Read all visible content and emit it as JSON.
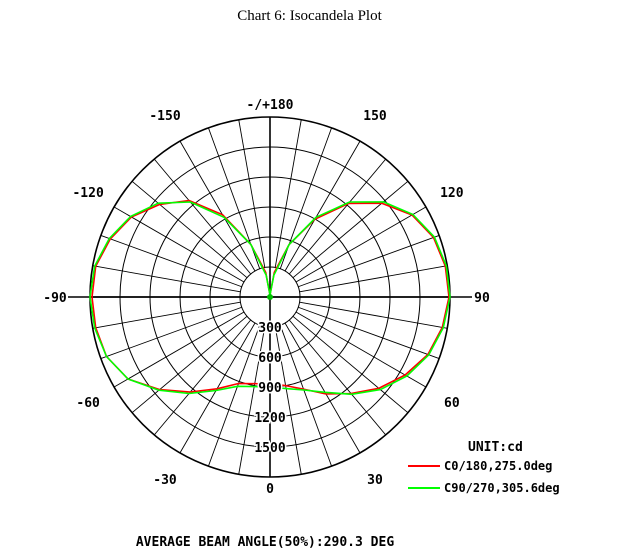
{
  "chart_data": {
    "type": "polar-line",
    "title": "Chart 6: Isocandela Plot",
    "unit_label": "UNIT:cd",
    "angle_labels": [
      {
        "deg": 180,
        "text": "-/+180"
      },
      {
        "deg": 150,
        "text": "150"
      },
      {
        "deg": 120,
        "text": "120"
      },
      {
        "deg": 90,
        "text": "90"
      },
      {
        "deg": 60,
        "text": "60"
      },
      {
        "deg": 30,
        "text": "30"
      },
      {
        "deg": 0,
        "text": "0"
      },
      {
        "deg": -30,
        "text": "-30"
      },
      {
        "deg": -60,
        "text": "-60"
      },
      {
        "deg": -90,
        "text": "-90"
      },
      {
        "deg": -120,
        "text": "-120"
      },
      {
        "deg": -150,
        "text": "-150"
      }
    ],
    "radial_labels": [
      "300",
      "600",
      "900",
      "1200",
      "1500"
    ],
    "radial_max": 1800,
    "radial_rings": [
      300,
      600,
      900,
      1200,
      1500,
      1800
    ],
    "angle_grid_step_deg": 10,
    "series": [
      {
        "name": "C0/180,275.0deg",
        "color": "#ff0000",
        "angles": [
          0,
          10,
          20,
          30,
          40,
          50,
          60,
          70,
          80,
          90,
          100,
          110,
          120,
          130,
          140,
          150,
          160,
          170,
          180,
          -170,
          -160,
          -150,
          -140,
          -130,
          -120,
          -110,
          -100,
          -90,
          -80,
          -70,
          -60,
          -50,
          -40,
          -30,
          -20,
          -10
        ],
        "values": [
          870,
          900,
          980,
          1120,
          1260,
          1420,
          1560,
          1680,
          1750,
          1790,
          1780,
          1740,
          1640,
          1460,
          1220,
          900,
          560,
          250,
          20,
          250,
          560,
          950,
          1260,
          1440,
          1600,
          1700,
          1770,
          1780,
          1770,
          1740,
          1640,
          1440,
          1240,
          1060,
          920,
          880
        ]
      },
      {
        "name": "C90/270,305.6deg",
        "color": "#00ff00",
        "angles": [
          0,
          10,
          20,
          30,
          40,
          50,
          60,
          70,
          80,
          90,
          100,
          110,
          120,
          130,
          140,
          150,
          160,
          170,
          180,
          -170,
          -160,
          -150,
          -140,
          -130,
          -120,
          -110,
          -100,
          -90,
          -80,
          -70,
          -60,
          -50,
          -40,
          -30,
          -20,
          -10
        ],
        "values": [
          900,
          930,
          990,
          1100,
          1270,
          1440,
          1580,
          1690,
          1760,
          1800,
          1790,
          1750,
          1650,
          1480,
          1240,
          920,
          560,
          220,
          20,
          220,
          560,
          920,
          1240,
          1460,
          1610,
          1710,
          1780,
          1800,
          1780,
          1740,
          1640,
          1450,
          1260,
          1080,
          950,
          910
        ]
      }
    ],
    "footer": "AVERAGE BEAM ANGLE(50%):290.3 DEG"
  }
}
